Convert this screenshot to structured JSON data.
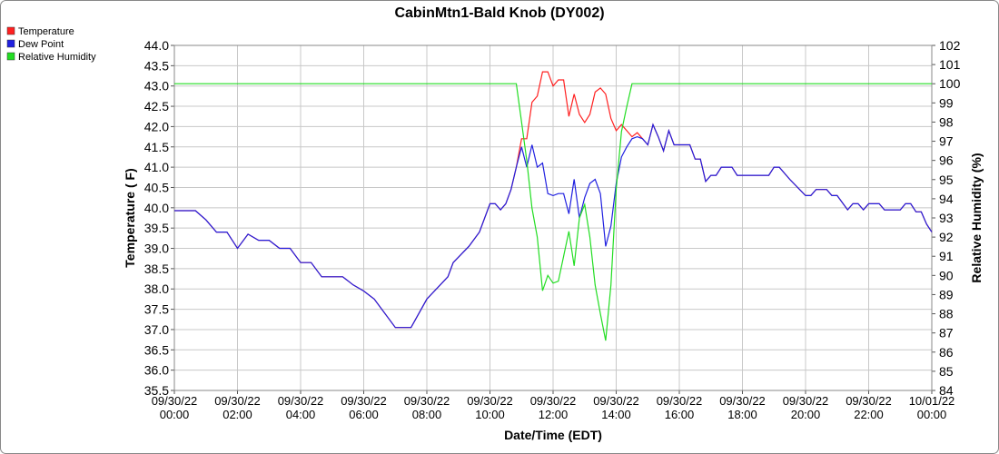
{
  "chart_data": {
    "type": "line",
    "title": "CabinMtn1-Bald Knob (DY002)",
    "x_label": "Date/Time (EDT)",
    "y_label": "Temperature ( F)",
    "y2_label": "Relative Humidity (%)",
    "grid": true,
    "legend": "top-left",
    "x": [
      "09/30/22 00:00",
      "09/30/22 00:40",
      "09/30/22 01:00",
      "09/30/22 01:20",
      "09/30/22 01:40",
      "09/30/22 02:00",
      "09/30/22 02:20",
      "09/30/22 02:40",
      "09/30/22 03:00",
      "09/30/22 03:20",
      "09/30/22 03:40",
      "09/30/22 04:00",
      "09/30/22 04:20",
      "09/30/22 04:40",
      "09/30/22 05:00",
      "09/30/22 05:20",
      "09/30/22 05:40",
      "09/30/22 06:00",
      "09/30/22 06:20",
      "09/30/22 07:00",
      "09/30/22 07:30",
      "09/30/22 08:00",
      "09/30/22 08:40",
      "09/30/22 08:50",
      "09/30/22 09:20",
      "09/30/22 09:40",
      "09/30/22 10:00",
      "09/30/22 10:10",
      "09/30/22 10:20",
      "09/30/22 10:30",
      "09/30/22 10:40",
      "09/30/22 10:50",
      "09/30/22 11:00",
      "09/30/22 11:10",
      "09/30/22 11:20",
      "09/30/22 11:30",
      "09/30/22 11:40",
      "09/30/22 11:50",
      "09/30/22 12:00",
      "09/30/22 12:10",
      "09/30/22 12:20",
      "09/30/22 12:30",
      "09/30/22 12:40",
      "09/30/22 12:50",
      "09/30/22 13:00",
      "09/30/22 13:10",
      "09/30/22 13:20",
      "09/30/22 13:30",
      "09/30/22 13:40",
      "09/30/22 13:50",
      "09/30/22 14:00",
      "09/30/22 14:10",
      "09/30/22 14:20",
      "09/30/22 14:30",
      "09/30/22 14:40",
      "09/30/22 14:50",
      "09/30/22 15:00",
      "09/30/22 15:10",
      "09/30/22 15:20",
      "09/30/22 15:30",
      "09/30/22 15:40",
      "09/30/22 15:50",
      "09/30/22 16:20",
      "09/30/22 16:30",
      "09/30/22 16:40",
      "09/30/22 16:50",
      "09/30/22 17:00",
      "09/30/22 17:10",
      "09/30/22 17:20",
      "09/30/22 17:40",
      "09/30/22 17:50",
      "09/30/22 18:50",
      "09/30/22 19:00",
      "09/30/22 19:10",
      "09/30/22 19:30",
      "09/30/22 20:00",
      "09/30/22 20:10",
      "09/30/22 20:20",
      "09/30/22 20:40",
      "09/30/22 20:50",
      "09/30/22 21:00",
      "09/30/22 21:20",
      "09/30/22 21:30",
      "09/30/22 21:40",
      "09/30/22 21:50",
      "09/30/22 22:00",
      "09/30/22 22:20",
      "09/30/22 22:30",
      "09/30/22 23:00",
      "09/30/22 23:10",
      "09/30/22 23:20",
      "09/30/22 23:30",
      "09/30/22 23:40",
      "09/30/22 23:50",
      "10/01/22 00:00"
    ],
    "series": [
      {
        "name": "Temperature",
        "color": "#ff2020",
        "values": [
          39.93,
          39.93,
          39.7,
          39.4,
          39.4,
          39.0,
          39.35,
          39.2,
          39.2,
          39.0,
          39.0,
          38.65,
          38.65,
          38.3,
          38.3,
          38.3,
          38.1,
          37.95,
          37.75,
          37.05,
          37.05,
          37.75,
          38.3,
          38.65,
          39.05,
          39.4,
          40.1,
          40.1,
          39.95,
          40.1,
          40.45,
          41.0,
          41.7,
          41.7,
          42.6,
          42.75,
          43.35,
          43.35,
          43.0,
          43.15,
          43.15,
          42.25,
          42.8,
          42.3,
          42.1,
          42.3,
          42.85,
          42.95,
          42.8,
          42.2,
          41.9,
          42.05,
          41.9,
          41.75,
          41.85,
          41.7,
          41.55,
          42.05,
          41.75,
          41.4,
          41.9,
          41.55,
          41.55,
          41.2,
          41.2,
          40.65,
          40.8,
          40.8,
          41.0,
          41.0,
          40.8,
          40.8,
          41.0,
          41.0,
          40.7,
          40.3,
          40.3,
          40.45,
          40.45,
          40.3,
          40.3,
          39.95,
          40.1,
          40.1,
          39.95,
          40.1,
          40.1,
          39.95,
          39.95,
          40.1,
          40.1,
          39.9,
          39.9,
          39.6,
          39.4
        ]
      },
      {
        "name": "Dew Point",
        "color": "#2020e0",
        "values": [
          39.93,
          39.93,
          39.7,
          39.4,
          39.4,
          39.0,
          39.35,
          39.2,
          39.2,
          39.0,
          39.0,
          38.65,
          38.65,
          38.3,
          38.3,
          38.3,
          38.1,
          37.95,
          37.75,
          37.05,
          37.05,
          37.75,
          38.3,
          38.65,
          39.05,
          39.4,
          40.1,
          40.1,
          39.95,
          40.1,
          40.45,
          41.0,
          41.5,
          41.0,
          41.55,
          41.0,
          41.1,
          40.35,
          40.3,
          40.35,
          40.35,
          39.85,
          40.7,
          39.75,
          40.25,
          40.6,
          40.7,
          40.35,
          39.05,
          39.55,
          40.6,
          41.25,
          41.5,
          41.7,
          41.75,
          41.7,
          41.55,
          42.05,
          41.75,
          41.4,
          41.9,
          41.55,
          41.55,
          41.2,
          41.2,
          40.65,
          40.8,
          40.8,
          41.0,
          41.0,
          40.8,
          40.8,
          41.0,
          41.0,
          40.7,
          40.3,
          40.3,
          40.45,
          40.45,
          40.3,
          40.3,
          39.95,
          40.1,
          40.1,
          39.95,
          40.1,
          40.1,
          39.95,
          39.95,
          40.1,
          40.1,
          39.9,
          39.9,
          39.6,
          39.4
        ]
      },
      {
        "name": "Relative Humidity",
        "color": "#22dd22",
        "axis": "y2",
        "values": [
          100,
          100,
          100,
          100,
          100,
          100,
          100,
          100,
          100,
          100,
          100,
          100,
          100,
          100,
          100,
          100,
          100,
          100,
          100,
          100,
          100,
          100,
          100,
          100,
          100,
          100,
          100,
          100,
          100,
          100,
          100,
          100,
          98,
          96,
          93.5,
          92,
          89.2,
          90,
          89.6,
          89.7,
          91,
          92.3,
          90.5,
          93,
          93.7,
          92,
          89.5,
          88,
          86.6,
          89.5,
          94.5,
          97.5,
          98.8,
          100,
          100,
          100,
          100,
          100,
          100,
          100,
          100,
          100,
          100,
          100,
          100,
          100,
          100,
          100,
          100,
          100,
          100,
          100,
          100,
          100,
          100,
          100,
          100,
          100,
          100,
          100,
          100,
          100,
          100,
          100,
          100,
          100,
          100,
          100,
          100,
          100,
          100,
          100,
          100,
          100,
          100
        ]
      }
    ],
    "xlim": [
      "09/30/22 00:00",
      "10/01/22 00:00"
    ],
    "xticks": [
      "09/30/22 00:00",
      "09/30/22 02:00",
      "09/30/22 04:00",
      "09/30/22 06:00",
      "09/30/22 08:00",
      "09/30/22 10:00",
      "09/30/22 12:00",
      "09/30/22 14:00",
      "09/30/22 16:00",
      "09/30/22 18:00",
      "09/30/22 20:00",
      "09/30/22 22:00",
      "10/01/22 00:00"
    ],
    "ylim": [
      35.5,
      44
    ],
    "yticks": [
      35.5,
      {
        "value": 36,
        "label": "36.0"
      },
      36.5,
      {
        "value": 37,
        "label": "37.0"
      },
      37.5,
      {
        "value": 38,
        "label": "38.0"
      },
      38.5,
      {
        "value": 39,
        "label": "39.0"
      },
      39.5,
      {
        "value": 40,
        "label": "40.0"
      },
      40.5,
      {
        "value": 41,
        "label": "41.0"
      },
      41.5,
      {
        "value": 42,
        "label": "42.0"
      },
      42.5,
      {
        "value": 43,
        "label": "43.0"
      },
      43.5,
      {
        "value": 44,
        "label": "44.0"
      }
    ],
    "y2lim": [
      84,
      102
    ],
    "y2ticks": [
      84,
      85,
      86,
      87,
      88,
      89,
      90,
      91,
      92,
      93,
      94,
      95,
      96,
      97,
      98,
      99,
      100,
      101,
      102
    ]
  }
}
